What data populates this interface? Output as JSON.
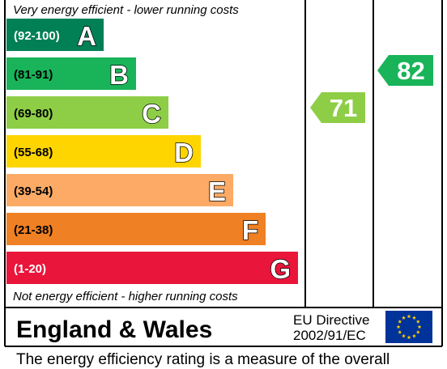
{
  "chart_data": {
    "type": "bar",
    "top_note": "Very energy efficient - lower running costs",
    "bottom_note": "Not energy efficient - higher running costs",
    "bands": [
      {
        "letter": "A",
        "range": "(92-100)",
        "color": "#008054"
      },
      {
        "letter": "B",
        "range": "(81-91)",
        "color": "#19b459"
      },
      {
        "letter": "C",
        "range": "(69-80)",
        "color": "#8dce46"
      },
      {
        "letter": "D",
        "range": "(55-68)",
        "color": "#ffd500"
      },
      {
        "letter": "E",
        "range": "(39-54)",
        "color": "#fcaa65"
      },
      {
        "letter": "F",
        "range": "(21-38)",
        "color": "#ef8023"
      },
      {
        "letter": "G",
        "range": "(1-20)",
        "color": "#e9153b"
      }
    ],
    "ratings": [
      {
        "value": 71,
        "band": "C",
        "color": "#8dce46"
      },
      {
        "value": 82,
        "band": "B",
        "color": "#19b459"
      }
    ],
    "region": "England & Wales",
    "directive_line1": "EU Directive",
    "directive_line2": "2002/91/EC",
    "footer_text": "The energy efficiency rating is a measure of the overall"
  }
}
